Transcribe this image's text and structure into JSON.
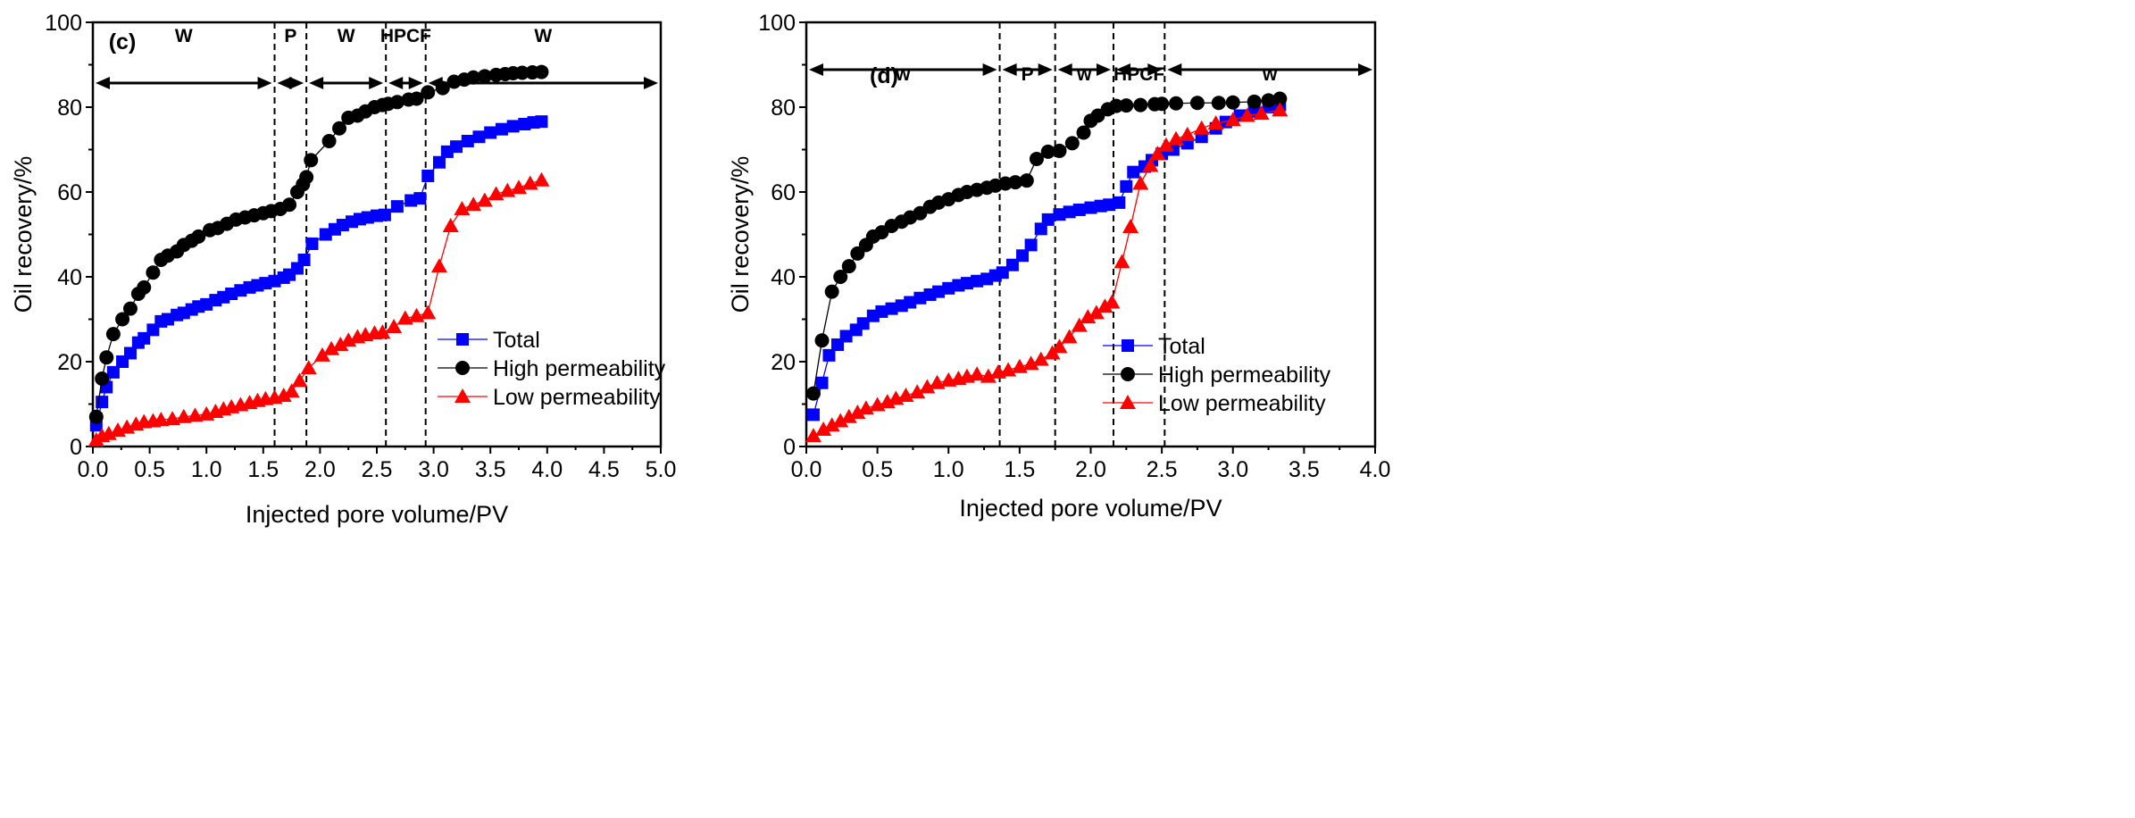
{
  "chart_data": [
    {
      "type": "line",
      "panel_label": "(c)",
      "xlabel": "Injected pore volume/PV",
      "ylabel": "Oil recovery/%",
      "xlim": [
        0,
        5
      ],
      "ylim": [
        0,
        100
      ],
      "xticks": [
        "0.0",
        "0.5",
        "1.0",
        "1.5",
        "2.0",
        "2.5",
        "3.0",
        "3.5",
        "4.0",
        "4.5",
        "5.0"
      ],
      "yticks": [
        "0",
        "20",
        "40",
        "60",
        "80",
        "100"
      ],
      "legend_position": "center-right",
      "phase_boundaries": [
        1.6,
        1.88,
        2.58,
        2.93
      ],
      "phases": [
        "W",
        "P",
        "W",
        "HPCF",
        "W"
      ],
      "series": [
        {
          "name": "Total",
          "color": "#0000ff",
          "marker": "square",
          "x": [
            0.03,
            0.08,
            0.12,
            0.18,
            0.26,
            0.33,
            0.4,
            0.45,
            0.53,
            0.6,
            0.66,
            0.74,
            0.8,
            0.87,
            0.93,
            1.0,
            1.08,
            1.15,
            1.22,
            1.3,
            1.38,
            1.45,
            1.52,
            1.6,
            1.68,
            1.73,
            1.8,
            1.86,
            1.93,
            2.05,
            2.13,
            2.2,
            2.28,
            2.35,
            2.42,
            2.5,
            2.57,
            2.68,
            2.8,
            2.88,
            2.95,
            3.05,
            3.12,
            3.2,
            3.3,
            3.4,
            3.5,
            3.6,
            3.7,
            3.8,
            3.88,
            3.95
          ],
          "y": [
            5,
            10.5,
            14,
            17.5,
            20,
            22,
            24.5,
            25.5,
            27.5,
            29.5,
            30,
            31,
            31.5,
            32.3,
            33,
            33.5,
            34.5,
            35.2,
            36,
            36.8,
            37.5,
            38,
            38.5,
            39,
            39.8,
            40.5,
            42,
            44,
            47.8,
            50,
            51.2,
            52.2,
            53,
            53.6,
            54,
            54.4,
            54.6,
            56.6,
            58,
            58.5,
            63.8,
            67,
            69.5,
            70.7,
            72,
            73,
            74,
            74.8,
            75.5,
            76,
            76.4,
            76.6
          ]
        },
        {
          "name": "High permeability",
          "color": "#000000",
          "marker": "circle",
          "x": [
            0.03,
            0.08,
            0.12,
            0.18,
            0.26,
            0.33,
            0.4,
            0.45,
            0.53,
            0.6,
            0.66,
            0.74,
            0.8,
            0.87,
            0.93,
            1.03,
            1.1,
            1.18,
            1.26,
            1.34,
            1.42,
            1.5,
            1.57,
            1.65,
            1.73,
            1.8,
            1.85,
            1.88,
            1.92,
            2.08,
            2.17,
            2.25,
            2.33,
            2.4,
            2.48,
            2.55,
            2.6,
            2.68,
            2.78,
            2.85,
            2.95,
            3.08,
            3.18,
            3.27,
            3.35,
            3.45,
            3.55,
            3.63,
            3.7,
            3.78,
            3.87,
            3.95
          ],
          "y": [
            7,
            16,
            21,
            26.5,
            30,
            32.5,
            36,
            37.5,
            41,
            44,
            45,
            46,
            47.5,
            48.5,
            49.5,
            51,
            51.5,
            52.5,
            53.5,
            54,
            54.5,
            55,
            55.5,
            56,
            57,
            60,
            61.8,
            63.5,
            67.5,
            72,
            75,
            77.5,
            78,
            79,
            80,
            80.5,
            80.8,
            81.2,
            81.8,
            82,
            83.5,
            84.5,
            86,
            86.5,
            87,
            87.3,
            87.6,
            87.8,
            88,
            88.1,
            88.2,
            88.3
          ]
        },
        {
          "name": "Low permeability",
          "color": "#ff0000",
          "marker": "triangle",
          "x": [
            0.03,
            0.08,
            0.14,
            0.22,
            0.3,
            0.38,
            0.45,
            0.53,
            0.6,
            0.7,
            0.8,
            0.9,
            1.0,
            1.08,
            1.15,
            1.22,
            1.3,
            1.38,
            1.45,
            1.52,
            1.6,
            1.68,
            1.75,
            1.82,
            1.9,
            2.02,
            2.1,
            2.18,
            2.25,
            2.33,
            2.4,
            2.48,
            2.55,
            2.65,
            2.75,
            2.85,
            2.95,
            3.05,
            3.15,
            3.25,
            3.35,
            3.45,
            3.55,
            3.65,
            3.75,
            3.85,
            3.95
          ],
          "y": [
            1.5,
            2.5,
            3,
            3.8,
            4.5,
            5.2,
            5.8,
            6,
            6.3,
            6.5,
            7,
            7.3,
            7.6,
            8.2,
            8.8,
            9.3,
            9.8,
            10.3,
            10.8,
            11.2,
            11.5,
            12,
            13,
            15.5,
            18.5,
            21.5,
            23,
            24,
            25,
            25.8,
            26.3,
            26.7,
            26.9,
            28.2,
            30.2,
            30.8,
            31.5,
            42.5,
            52,
            56,
            57,
            58,
            59.5,
            60.3,
            61,
            62,
            62.8
          ]
        }
      ]
    },
    {
      "type": "line",
      "panel_label": "(d)",
      "xlabel": "Injected pore volume/PV",
      "ylabel": "Oil recovery/%",
      "xlim": [
        0,
        4
      ],
      "ylim": [
        0,
        100
      ],
      "xticks": [
        "0.0",
        "0.5",
        "1.0",
        "1.5",
        "2.0",
        "2.5",
        "3.0",
        "3.5",
        "4.0"
      ],
      "yticks": [
        "0",
        "20",
        "40",
        "60",
        "80",
        "100"
      ],
      "legend_position": "lower-center",
      "phase_boundaries": [
        1.36,
        1.75,
        2.16,
        2.52
      ],
      "phases": [
        "w",
        "P",
        "w",
        "HPCF",
        "w"
      ],
      "series": [
        {
          "name": "Total",
          "color": "#0000ff",
          "marker": "square",
          "x": [
            0.05,
            0.11,
            0.16,
            0.22,
            0.28,
            0.35,
            0.4,
            0.47,
            0.53,
            0.6,
            0.67,
            0.73,
            0.8,
            0.87,
            0.93,
            1.0,
            1.07,
            1.13,
            1.2,
            1.27,
            1.33,
            1.38,
            1.45,
            1.52,
            1.58,
            1.65,
            1.7,
            1.78,
            1.85,
            1.92,
            2.0,
            2.07,
            2.13,
            2.2,
            2.25,
            2.3,
            2.38,
            2.43,
            2.5,
            2.58,
            2.68,
            2.78,
            2.88,
            2.95,
            3.05,
            3.15,
            3.25,
            3.33
          ],
          "y": [
            7.5,
            15,
            21.5,
            24,
            26,
            27.5,
            29,
            30.8,
            31.8,
            32.5,
            33.2,
            34,
            35,
            35.8,
            36.5,
            37.3,
            38,
            38.5,
            39,
            39.5,
            40.3,
            41,
            42.8,
            45,
            47.5,
            51.3,
            53.5,
            54.7,
            55.3,
            55.8,
            56.3,
            56.7,
            57,
            57.5,
            61.3,
            64.7,
            66,
            67.5,
            69,
            70,
            71.5,
            73,
            75,
            76.5,
            78,
            79,
            80,
            80.5
          ]
        },
        {
          "name": "High permeability",
          "color": "#000000",
          "marker": "circle",
          "x": [
            0.05,
            0.11,
            0.18,
            0.24,
            0.3,
            0.36,
            0.42,
            0.47,
            0.53,
            0.6,
            0.67,
            0.73,
            0.8,
            0.87,
            0.93,
            1.0,
            1.07,
            1.13,
            1.2,
            1.27,
            1.33,
            1.4,
            1.47,
            1.55,
            1.62,
            1.7,
            1.78,
            1.87,
            1.95,
            2.0,
            2.05,
            2.12,
            2.18,
            2.25,
            2.35,
            2.45,
            2.5,
            2.6,
            2.75,
            2.9,
            3.0,
            3.15,
            3.25,
            3.33
          ],
          "y": [
            12.5,
            25,
            36.5,
            40,
            42.5,
            45.5,
            47.5,
            49.5,
            50.5,
            52,
            53,
            54,
            55,
            56.5,
            57.5,
            58.3,
            59.3,
            60,
            60.5,
            61,
            61.5,
            62,
            62.3,
            62.7,
            67.8,
            69.5,
            69.7,
            71.5,
            74,
            76.8,
            78,
            79.5,
            80.3,
            80.4,
            80.5,
            80.7,
            80.8,
            80.9,
            81,
            81,
            81.1,
            81.3,
            81.6,
            82
          ]
        },
        {
          "name": "Low permeability",
          "color": "#ff0000",
          "marker": "triangle",
          "x": [
            0.05,
            0.12,
            0.18,
            0.24,
            0.3,
            0.36,
            0.42,
            0.5,
            0.57,
            0.63,
            0.7,
            0.78,
            0.85,
            0.92,
            1.0,
            1.07,
            1.13,
            1.2,
            1.28,
            1.35,
            1.42,
            1.5,
            1.58,
            1.65,
            1.73,
            1.78,
            1.85,
            1.92,
            1.98,
            2.04,
            2.1,
            2.15,
            2.22,
            2.28,
            2.35,
            2.42,
            2.47,
            2.53,
            2.6,
            2.68,
            2.78,
            2.88,
            3.0,
            3.1,
            3.2,
            3.33
          ],
          "y": [
            2.5,
            4,
            5,
            6,
            7,
            8,
            9,
            9.8,
            10.5,
            11.3,
            12,
            12.8,
            14,
            15,
            15.6,
            16,
            16.5,
            17,
            16.5,
            17.5,
            18,
            18.8,
            19.5,
            20.5,
            22,
            23.5,
            25.8,
            28.5,
            30.5,
            31.5,
            33,
            34,
            43.5,
            51.8,
            62,
            66.2,
            69,
            71,
            72.5,
            73.5,
            75,
            76.2,
            77,
            78,
            78.5,
            79.3
          ]
        }
      ]
    }
  ]
}
